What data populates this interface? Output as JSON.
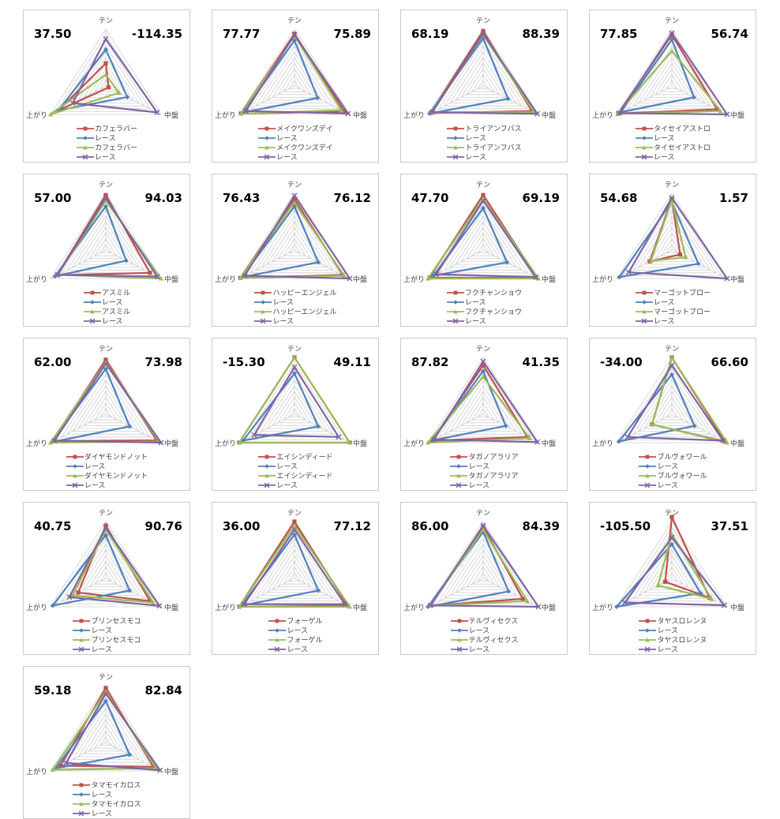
{
  "page": {
    "background": "#ffffff"
  },
  "palette": {
    "red": "#C0504D",
    "blue": "#4F81BD",
    "green": "#9BBB59",
    "purple": "#8064A2",
    "grid_line": "#cfcfcf",
    "panel_border": "#c9c9c9",
    "stat_text": "#000000",
    "label_text": "#3f3f3f"
  },
  "axes": [
    "テン",
    "中盤",
    "上がり"
  ],
  "legend_race_label": "レース",
  "chart_data": [
    {
      "type": "radar",
      "name": "カフェラバー",
      "left_value": "37.50",
      "right_value": "-114.35",
      "axes": [
        "テン",
        "中盤",
        "上がり"
      ],
      "legend": [
        "カフェラバー",
        "レース",
        "カフェラバー",
        "レース"
      ],
      "series": [
        {
          "name": "カフェラバー",
          "color": "#C0504D",
          "marker": "square",
          "values": [
            40,
            5,
            85
          ]
        },
        {
          "name": "レース",
          "color": "#4F81BD",
          "marker": "diamond",
          "values": [
            64,
            39,
            86
          ]
        },
        {
          "name": "カフェラバー",
          "color": "#9BBB59",
          "marker": "triangle",
          "values": [
            20,
            24,
            100
          ]
        },
        {
          "name": "レース",
          "color": "#8064A2",
          "marker": "x",
          "values": [
            83,
            93,
            60
          ]
        }
      ]
    },
    {
      "type": "radar",
      "name": "メイクワンズデイ",
      "left_value": "77.77",
      "right_value": "75.89",
      "axes": [
        "テン",
        "中盤",
        "上がり"
      ],
      "legend": [
        "メイクワンズデイ",
        "レース",
        "メイクワンズデイ",
        "レース"
      ],
      "series": [
        {
          "name": "メイクワンズデイ",
          "color": "#C0504D",
          "marker": "square",
          "values": [
            92,
            90,
            97
          ]
        },
        {
          "name": "レース",
          "color": "#4F81BD",
          "marker": "diamond",
          "values": [
            80,
            42,
            93
          ]
        },
        {
          "name": "メイクワンズデイ",
          "color": "#9BBB59",
          "marker": "triangle",
          "values": [
            88,
            85,
            97
          ]
        },
        {
          "name": "レース",
          "color": "#8064A2",
          "marker": "x",
          "values": [
            90,
            97,
            88
          ]
        }
      ]
    },
    {
      "type": "radar",
      "name": "トライアンフバス",
      "left_value": "68.19",
      "right_value": "88.39",
      "axes": [
        "テン",
        "中盤",
        "上がり"
      ],
      "legend": [
        "トライアンフバス",
        "レース",
        "トライアンフバス",
        "レース"
      ],
      "series": [
        {
          "name": "トライアンフバス",
          "color": "#C0504D",
          "marker": "square",
          "values": [
            97,
            88,
            95
          ]
        },
        {
          "name": "レース",
          "color": "#4F81BD",
          "marker": "diamond",
          "values": [
            84,
            45,
            97
          ]
        },
        {
          "name": "トライアンフバス",
          "color": "#9BBB59",
          "marker": "triangle",
          "values": [
            90,
            92,
            93
          ]
        },
        {
          "name": "レース",
          "color": "#8064A2",
          "marker": "x",
          "values": [
            92,
            98,
            92
          ]
        }
      ]
    },
    {
      "type": "radar",
      "name": "タイセイアストロ",
      "left_value": "77.85",
      "right_value": "56.74",
      "axes": [
        "テン",
        "中盤",
        "上がり"
      ],
      "legend": [
        "タイセイアストロ",
        "レース",
        "タイセイアストロ",
        "レース"
      ],
      "series": [
        {
          "name": "タイセイアストロ",
          "color": "#C0504D",
          "marker": "square",
          "values": [
            90,
            82,
            97
          ]
        },
        {
          "name": "レース",
          "color": "#4F81BD",
          "marker": "diamond",
          "values": [
            82,
            40,
            92
          ]
        },
        {
          "name": "タイセイアストロ",
          "color": "#9BBB59",
          "marker": "triangle",
          "values": [
            62,
            88,
            98
          ]
        },
        {
          "name": "レース",
          "color": "#8064A2",
          "marker": "x",
          "values": [
            93,
            100,
            95
          ]
        }
      ]
    },
    {
      "type": "radar",
      "name": "アスミル",
      "left_value": "57.00",
      "right_value": "94.03",
      "axes": [
        "テン",
        "中盤",
        "上がり"
      ],
      "legend": [
        "アスミル",
        "レース",
        "アスミル",
        "レース"
      ],
      "series": [
        {
          "name": "アスミル",
          "color": "#C0504D",
          "marker": "square",
          "values": [
            97,
            80,
            88
          ]
        },
        {
          "name": "レース",
          "color": "#4F81BD",
          "marker": "diamond",
          "values": [
            77,
            37,
            92
          ]
        },
        {
          "name": "アスミル",
          "color": "#9BBB59",
          "marker": "triangle",
          "values": [
            87,
            100,
            87
          ]
        },
        {
          "name": "レース",
          "color": "#8064A2",
          "marker": "x",
          "values": [
            92,
            93,
            87
          ]
        }
      ]
    },
    {
      "type": "radar",
      "name": "ハッピーエンジェル",
      "left_value": "76.43",
      "right_value": "76.12",
      "axes": [
        "テン",
        "中盤",
        "上がり"
      ],
      "legend": [
        "ハッピーエンジェル",
        "レース",
        "ハッピーエンジェル",
        "レース"
      ],
      "series": [
        {
          "name": "ハッピーエンジェル",
          "color": "#C0504D",
          "marker": "square",
          "values": [
            90,
            87,
            98
          ]
        },
        {
          "name": "レース",
          "color": "#4F81BD",
          "marker": "diamond",
          "values": [
            77,
            43,
            95
          ]
        },
        {
          "name": "ハッピーエンジェル",
          "color": "#9BBB59",
          "marker": "triangle",
          "values": [
            84,
            90,
            98
          ]
        },
        {
          "name": "レース",
          "color": "#8064A2",
          "marker": "x",
          "values": [
            96,
            100,
            90
          ]
        }
      ]
    },
    {
      "type": "radar",
      "name": "フクチャンショウ",
      "left_value": "47.70",
      "right_value": "69.19",
      "axes": [
        "テン",
        "中盤",
        "上がり"
      ],
      "legend": [
        "フクチャンショウ",
        "レース",
        "フクチャンショウ",
        "レース"
      ],
      "series": [
        {
          "name": "フクチャンショウ",
          "color": "#C0504D",
          "marker": "square",
          "values": [
            97,
            97,
            97
          ]
        },
        {
          "name": "レース",
          "color": "#4F81BD",
          "marker": "diamond",
          "values": [
            74,
            43,
            90
          ]
        },
        {
          "name": "フクチャンショウ",
          "color": "#9BBB59",
          "marker": "triangle",
          "values": [
            90,
            100,
            100
          ]
        },
        {
          "name": "レース",
          "color": "#8064A2",
          "marker": "x",
          "values": [
            87,
            95,
            85
          ]
        }
      ]
    },
    {
      "type": "radar",
      "name": "マーゴットブロー",
      "left_value": "54.68",
      "right_value": "1.57",
      "axes": [
        "テン",
        "中盤",
        "上がり"
      ],
      "legend": [
        "マーゴットブロー",
        "レース",
        "マーゴットブロー",
        "レース"
      ],
      "series": [
        {
          "name": "マーゴットブロー",
          "color": "#C0504D",
          "marker": "square",
          "values": [
            90,
            15,
            40
          ]
        },
        {
          "name": "レース",
          "color": "#4F81BD",
          "marker": "diamond",
          "values": [
            85,
            48,
            95
          ]
        },
        {
          "name": "マーゴットブロー",
          "color": "#9BBB59",
          "marker": "triangle",
          "values": [
            88,
            25,
            38
          ]
        },
        {
          "name": "レース",
          "color": "#8064A2",
          "marker": "x",
          "values": [
            92,
            100,
            78
          ]
        }
      ]
    },
    {
      "type": "radar",
      "name": "ダイヤモンドノット",
      "left_value": "62.00",
      "right_value": "73.98",
      "axes": [
        "テン",
        "中盤",
        "上がり"
      ],
      "legend": [
        "ダイヤモンドノット",
        "レース",
        "ダイヤモンドノット",
        "レース"
      ],
      "series": [
        {
          "name": "ダイヤモンドノット",
          "color": "#C0504D",
          "marker": "square",
          "values": [
            96,
            92,
            95
          ]
        },
        {
          "name": "レース",
          "color": "#4F81BD",
          "marker": "diamond",
          "values": [
            80,
            43,
            98
          ]
        },
        {
          "name": "ダイヤモンドノット",
          "color": "#9BBB59",
          "marker": "triangle",
          "values": [
            91,
            96,
            100
          ]
        },
        {
          "name": "レース",
          "color": "#8064A2",
          "marker": "x",
          "values": [
            89,
            100,
            93
          ]
        }
      ]
    },
    {
      "type": "radar",
      "name": "エイシンディード",
      "left_value": "-15.30",
      "right_value": "49.11",
      "axes": [
        "テン",
        "中盤",
        "上がり"
      ],
      "legend": [
        "エイシンディード",
        "レース",
        "エイシンディード",
        "レース"
      ],
      "series": [
        {
          "name": "エイシンディード",
          "color": "#C0504D",
          "marker": "square",
          "values": [
            100,
            100,
            100
          ]
        },
        {
          "name": "レース",
          "color": "#4F81BD",
          "marker": "diamond",
          "values": [
            72,
            43,
            93
          ]
        },
        {
          "name": "エイシンディード",
          "color": "#9BBB59",
          "marker": "triangle",
          "values": [
            100,
            100,
            100
          ]
        },
        {
          "name": "レース",
          "color": "#8064A2",
          "marker": "x",
          "values": [
            83,
            80,
            73
          ]
        }
      ]
    },
    {
      "type": "radar",
      "name": "タガノアラリア",
      "left_value": "87.82",
      "right_value": "41.35",
      "axes": [
        "テン",
        "中盤",
        "上がり"
      ],
      "legend": [
        "タガノアラリア",
        "レース",
        "タガノアラリア",
        "レース"
      ],
      "series": [
        {
          "name": "タガノアラリア",
          "color": "#C0504D",
          "marker": "square",
          "values": [
            86,
            80,
            93
          ]
        },
        {
          "name": "レース",
          "color": "#4F81BD",
          "marker": "diamond",
          "values": [
            76,
            41,
            92
          ]
        },
        {
          "name": "タガノアラリア",
          "color": "#9BBB59",
          "marker": "triangle",
          "values": [
            66,
            84,
            100
          ]
        },
        {
          "name": "レース",
          "color": "#8064A2",
          "marker": "x",
          "values": [
            93,
            98,
            89
          ]
        }
      ]
    },
    {
      "type": "radar",
      "name": "ブルヴォワール",
      "left_value": "-34.00",
      "right_value": "66.60",
      "axes": [
        "テン",
        "中盤",
        "上がり"
      ],
      "legend": [
        "ブルヴォワール",
        "レース",
        "ブルヴォワール",
        "レース"
      ],
      "series": [
        {
          "name": "ブルヴォワール",
          "color": "#C0504D",
          "marker": "square",
          "values": [
            100,
            96,
            36
          ]
        },
        {
          "name": "レース",
          "color": "#4F81BD",
          "marker": "diamond",
          "values": [
            70,
            41,
            96
          ]
        },
        {
          "name": "ブルヴォワール",
          "color": "#9BBB59",
          "marker": "triangle",
          "values": [
            100,
            100,
            36
          ]
        },
        {
          "name": "レース",
          "color": "#8064A2",
          "marker": "x",
          "values": [
            86,
            93,
            80
          ]
        }
      ]
    },
    {
      "type": "radar",
      "name": "プリンセスモコ",
      "left_value": "40.75",
      "right_value": "90.76",
      "axes": [
        "テン",
        "中盤",
        "上がり"
      ],
      "legend": [
        "プリンセスモコ",
        "レース",
        "プリンセスモコ",
        "レース"
      ],
      "series": [
        {
          "name": "プリンセスモコ",
          "color": "#C0504D",
          "marker": "square",
          "values": [
            93,
            80,
            50
          ]
        },
        {
          "name": "レース",
          "color": "#4F81BD",
          "marker": "diamond",
          "values": [
            76,
            43,
            96
          ]
        },
        {
          "name": "プリンセスモコ",
          "color": "#9BBB59",
          "marker": "triangle",
          "values": [
            86,
            86,
            60
          ]
        },
        {
          "name": "レース",
          "color": "#8064A2",
          "marker": "x",
          "values": [
            89,
            97,
            66
          ]
        }
      ]
    },
    {
      "type": "radar",
      "name": "フォーゲル",
      "left_value": "36.00",
      "right_value": "77.12",
      "axes": [
        "テン",
        "中盤",
        "上がり"
      ],
      "legend": [
        "フォーゲル",
        "レース",
        "フォーゲル",
        "レース"
      ],
      "series": [
        {
          "name": "フォーゲル",
          "color": "#C0504D",
          "marker": "square",
          "values": [
            100,
            96,
            100
          ]
        },
        {
          "name": "レース",
          "color": "#4F81BD",
          "marker": "diamond",
          "values": [
            77,
            43,
            96
          ]
        },
        {
          "name": "フォーゲル",
          "color": "#9BBB59",
          "marker": "triangle",
          "values": [
            93,
            100,
            100
          ]
        },
        {
          "name": "レース",
          "color": "#8064A2",
          "marker": "x",
          "values": [
            86,
            91,
            91
          ]
        }
      ]
    },
    {
      "type": "radar",
      "name": "テルヴィセクス",
      "left_value": "86.00",
      "right_value": "84.39",
      "axes": [
        "テン",
        "中盤",
        "上がり"
      ],
      "legend": [
        "テルヴィセクス",
        "レース",
        "テルヴィセクス",
        "レース"
      ],
      "series": [
        {
          "name": "テルヴィセクス",
          "color": "#C0504D",
          "marker": "square",
          "values": [
            91,
            72,
            96
          ]
        },
        {
          "name": "レース",
          "color": "#4F81BD",
          "marker": "diamond",
          "values": [
            82,
            46,
            100
          ]
        },
        {
          "name": "テルヴィセクス",
          "color": "#9BBB59",
          "marker": "triangle",
          "values": [
            86,
            80,
            96
          ]
        },
        {
          "name": "レース",
          "color": "#8064A2",
          "marker": "x",
          "values": [
            93,
            100,
            95
          ]
        }
      ]
    },
    {
      "type": "radar",
      "name": "タヤスロレンヌ",
      "left_value": "-105.50",
      "right_value": "37.51",
      "axes": [
        "テン",
        "中盤",
        "上がり"
      ],
      "legend": [
        "タヤスロレンヌ",
        "レース",
        "タヤスロレンヌ",
        "レース"
      ],
      "series": [
        {
          "name": "タヤスロレンヌ",
          "color": "#C0504D",
          "marker": "square",
          "values": [
            108,
            68,
            12
          ]
        },
        {
          "name": "レース",
          "color": "#4F81BD",
          "marker": "diamond",
          "values": [
            60,
            52,
            100
          ]
        },
        {
          "name": "タヤスロレンヌ",
          "color": "#9BBB59",
          "marker": "triangle",
          "values": [
            78,
            72,
            25
          ]
        },
        {
          "name": "レース",
          "color": "#8064A2",
          "marker": "x",
          "values": [
            72,
            95,
            85
          ]
        }
      ]
    },
    {
      "type": "radar",
      "name": "タマモイカロス",
      "left_value": "59.18",
      "right_value": "82.84",
      "axes": [
        "テン",
        "中盤",
        "上がり"
      ],
      "legend": [
        "タマモイカロス",
        "レース",
        "タマモイカロス",
        "レース"
      ],
      "series": [
        {
          "name": "タマモイカロス",
          "color": "#C0504D",
          "marker": "square",
          "values": [
            96,
            86,
            82
          ]
        },
        {
          "name": "レース",
          "color": "#4F81BD",
          "marker": "diamond",
          "values": [
            73,
            43,
            91
          ]
        },
        {
          "name": "タマモイカロス",
          "color": "#9BBB59",
          "marker": "triangle",
          "values": [
            89,
            91,
            96
          ]
        },
        {
          "name": "レース",
          "color": "#8064A2",
          "marker": "x",
          "values": [
            86,
            98,
            72
          ]
        }
      ]
    }
  ]
}
